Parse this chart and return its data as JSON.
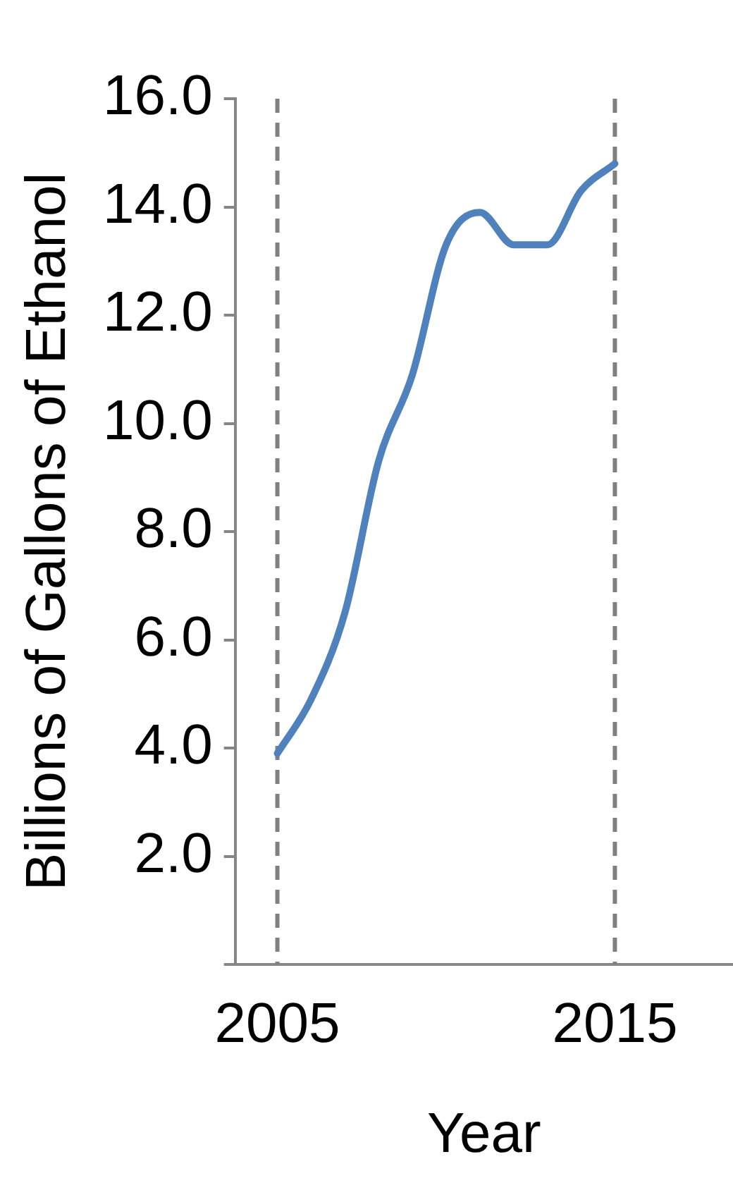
{
  "chart_data": {
    "type": "line",
    "xlabel": "Year",
    "ylabel": "Billions of Gallons of Ethanol",
    "x": [
      2005,
      2006,
      2007,
      2008,
      2009,
      2010,
      2011,
      2012,
      2013,
      2014,
      2015
    ],
    "series": [
      {
        "color": "#4f81bd",
        "values": [
          3.9,
          4.9,
          6.5,
          9.3,
          10.9,
          13.3,
          13.9,
          13.3,
          13.3,
          14.3,
          14.8
        ]
      }
    ],
    "xlim": [
      2003.75,
      2018.5
    ],
    "xticks": [
      2005,
      2015
    ],
    "ylim": [
      0,
      16
    ],
    "yticks": [
      {
        "value": 0,
        "label": null
      },
      {
        "value": 2,
        "label": "2.0"
      },
      {
        "value": 4,
        "label": "4.0"
      },
      {
        "value": 6,
        "label": "6.0"
      },
      {
        "value": 8,
        "label": "8.0"
      },
      {
        "value": 10,
        "label": "10.0"
      },
      {
        "value": 12,
        "label": "12.0"
      },
      {
        "value": 14,
        "label": "14.0"
      },
      {
        "value": 16,
        "label": "16.0"
      }
    ],
    "ref_lines": [
      {
        "axis": "x",
        "value": 2005,
        "color": "#808080",
        "line_style": "dashed"
      },
      {
        "axis": "x",
        "value": 2015,
        "color": "#808080",
        "line_style": "dashed"
      }
    ],
    "grid": false,
    "legend": false,
    "marker": "none",
    "line_style": "solid"
  }
}
